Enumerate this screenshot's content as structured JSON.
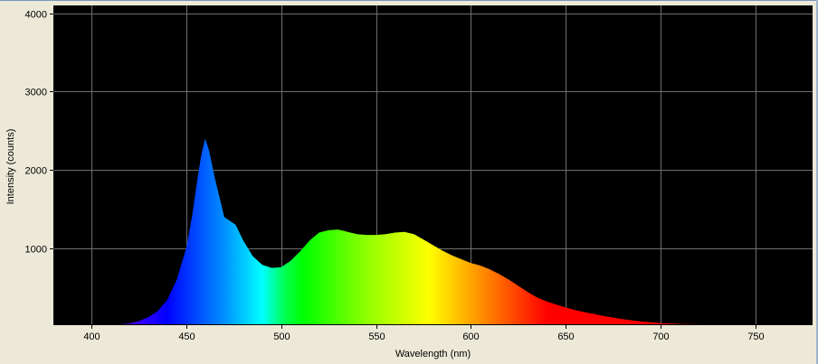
{
  "chart_data": {
    "type": "area",
    "title": "",
    "xlabel": "Wavelength (nm)",
    "ylabel": "Intensity (counts)",
    "xlim": [
      380,
      780
    ],
    "ylim": [
      30,
      4100
    ],
    "xticks": [
      400,
      450,
      500,
      550,
      600,
      650,
      700,
      750
    ],
    "yticks": [
      1000,
      2000,
      3000,
      4000
    ],
    "grid": true,
    "background": "#000000",
    "grid_color": "#6E6E6E",
    "fill": "wavelength-colored spectrum",
    "x": [
      415,
      420,
      425,
      430,
      435,
      440,
      445,
      450,
      453,
      456,
      458,
      460,
      462,
      465,
      468,
      470,
      473,
      476,
      480,
      485,
      490,
      495,
      500,
      505,
      510,
      515,
      520,
      525,
      530,
      535,
      540,
      545,
      550,
      555,
      560,
      565,
      570,
      575,
      580,
      585,
      590,
      595,
      600,
      605,
      610,
      615,
      620,
      625,
      630,
      635,
      640,
      645,
      650,
      655,
      660,
      665,
      670,
      675,
      680,
      685,
      690,
      695,
      700,
      710,
      720,
      730,
      740
    ],
    "y": [
      30,
      40,
      70,
      120,
      200,
      340,
      600,
      1000,
      1400,
      1900,
      2200,
      2400,
      2250,
      1900,
      1600,
      1400,
      1350,
      1300,
      1100,
      900,
      790,
      750,
      760,
      840,
      960,
      1100,
      1200,
      1230,
      1240,
      1210,
      1180,
      1170,
      1170,
      1180,
      1200,
      1210,
      1180,
      1110,
      1040,
      970,
      910,
      860,
      810,
      780,
      730,
      670,
      600,
      520,
      440,
      370,
      320,
      280,
      245,
      210,
      185,
      160,
      135,
      115,
      95,
      80,
      65,
      55,
      45,
      35,
      30,
      30,
      30
    ]
  }
}
